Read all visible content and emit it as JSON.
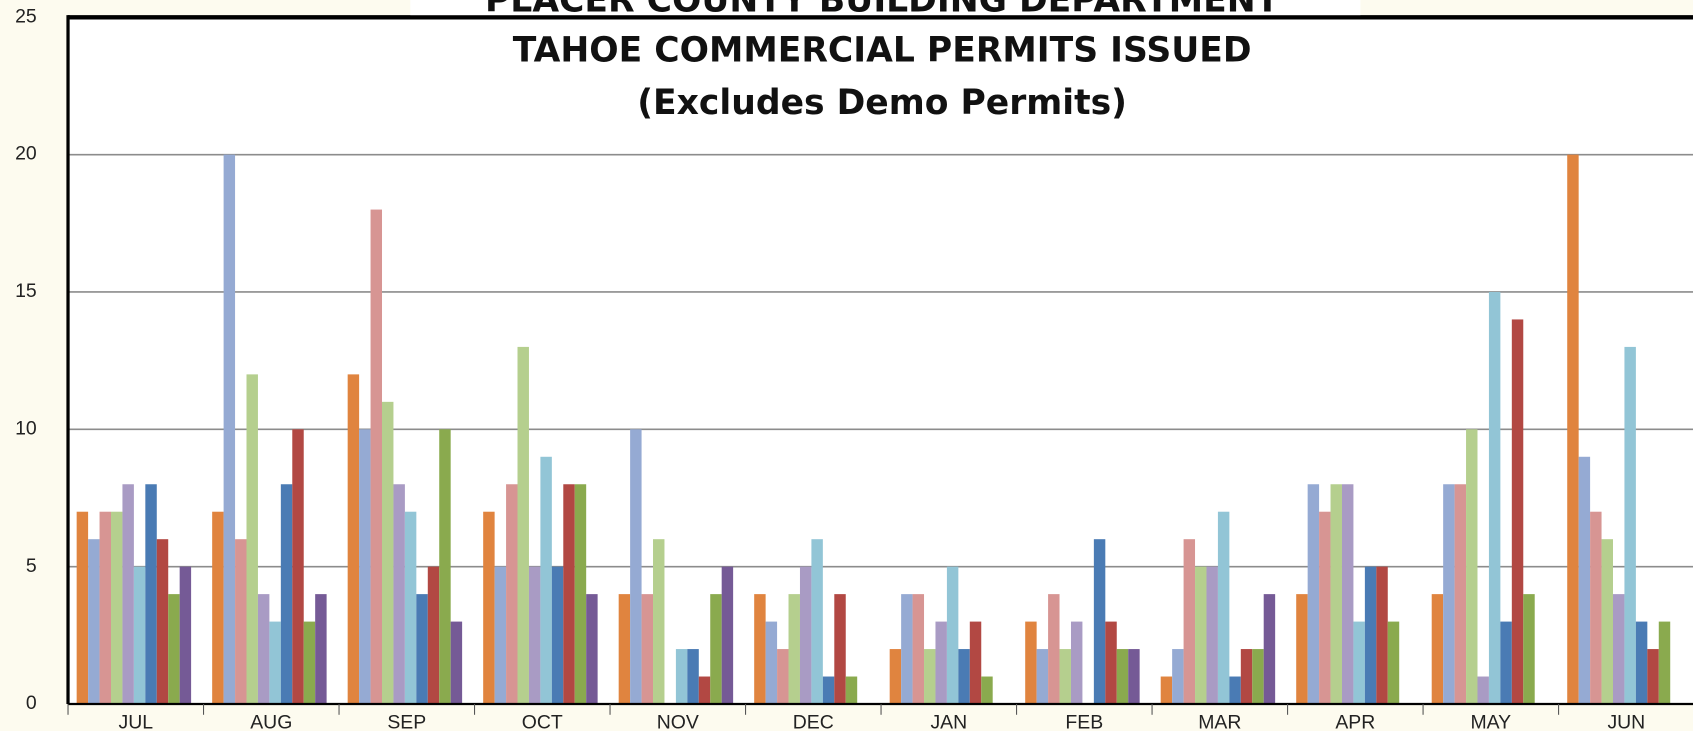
{
  "chart_data": {
    "type": "bar",
    "title": [
      "PLACER COUNTY BUILDING DEPARTMENT",
      "TAHOE COMMERCIAL PERMITS ISSUED",
      "(Excludes Demo Permits)"
    ],
    "categories": [
      "JUL",
      "AUG",
      "SEP",
      "OCT",
      "NOV",
      "DEC",
      "JAN",
      "FEB",
      "MAR",
      "APR",
      "MAY",
      "JUN"
    ],
    "series": [
      {
        "color": "#e0843f",
        "values": [
          7,
          7,
          12,
          7,
          4,
          4,
          2,
          3,
          1,
          4,
          4,
          20
        ]
      },
      {
        "color": "#95aad3",
        "values": [
          6,
          20,
          10,
          5,
          10,
          3,
          4,
          2,
          2,
          8,
          8,
          9
        ]
      },
      {
        "color": "#d79593",
        "values": [
          7,
          6,
          18,
          8,
          4,
          2,
          4,
          4,
          6,
          7,
          8,
          7
        ]
      },
      {
        "color": "#b5cf8e",
        "values": [
          7,
          12,
          11,
          13,
          6,
          4,
          2,
          2,
          5,
          8,
          10,
          6
        ]
      },
      {
        "color": "#a99bc4",
        "values": [
          8,
          4,
          8,
          5,
          0,
          5,
          3,
          3,
          5,
          8,
          1,
          4
        ]
      },
      {
        "color": "#92c5d6",
        "values": [
          5,
          3,
          7,
          9,
          2,
          6,
          5,
          0,
          7,
          3,
          15,
          13
        ]
      },
      {
        "color": "#4a7bb4",
        "values": [
          8,
          8,
          4,
          5,
          2,
          1,
          2,
          6,
          1,
          5,
          3,
          3
        ]
      },
      {
        "color": "#b24843",
        "values": [
          6,
          10,
          5,
          8,
          1,
          4,
          3,
          3,
          2,
          5,
          14,
          2
        ]
      },
      {
        "color": "#8aaa4e",
        "values": [
          4,
          3,
          10,
          8,
          4,
          1,
          1,
          2,
          2,
          3,
          4,
          3
        ]
      },
      {
        "color": "#755a96",
        "values": [
          5,
          4,
          3,
          4,
          5,
          0,
          0,
          2,
          4,
          0,
          0,
          0
        ]
      }
    ],
    "ylim": [
      0,
      25
    ],
    "yticks": [
      0,
      5,
      10,
      15,
      20,
      25
    ],
    "grid": true
  }
}
